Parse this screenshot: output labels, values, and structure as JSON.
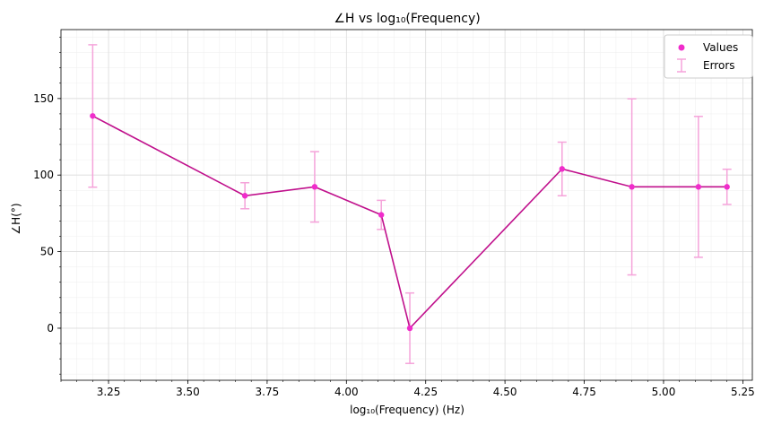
{
  "chart_data": {
    "type": "line",
    "title": "∠H vs log₁₀(Frequency)",
    "xlabel": "log₁₀(Frequency) (Hz)",
    "ylabel": "∠H(°)",
    "xlim": [
      3.1,
      5.28
    ],
    "ylim": [
      -34,
      195
    ],
    "xticks": [
      3.25,
      3.5,
      3.75,
      4.0,
      4.25,
      4.5,
      4.75,
      5.0,
      5.25
    ],
    "xtick_labels": [
      "3.25",
      "3.50",
      "3.75",
      "4.00",
      "4.25",
      "4.50",
      "4.75",
      "5.00",
      "5.25"
    ],
    "yticks": [
      0,
      50,
      100,
      150
    ],
    "ytick_labels": [
      "0",
      "50",
      "100",
      "150"
    ],
    "grid": true,
    "legend_position": "top-right",
    "series": [
      {
        "name": "Values",
        "x": [
          3.2,
          3.68,
          3.9,
          4.11,
          4.2,
          4.68,
          4.9,
          5.11,
          5.2
        ],
        "values": [
          138.6,
          86.5,
          92.3,
          74.0,
          0.0,
          104.0,
          92.3,
          92.3,
          92.3
        ],
        "errors": [
          46.5,
          8.5,
          23.0,
          9.5,
          23.0,
          17.5,
          57.5,
          46.0,
          11.5
        ]
      }
    ],
    "error_series_name": "Errors",
    "colors": {
      "line": "#c0108c",
      "marker": "#f02ccb",
      "error": "#f5a3da",
      "grid_major": "#dcdcdc",
      "grid_minor": "#f0f0f0"
    }
  }
}
